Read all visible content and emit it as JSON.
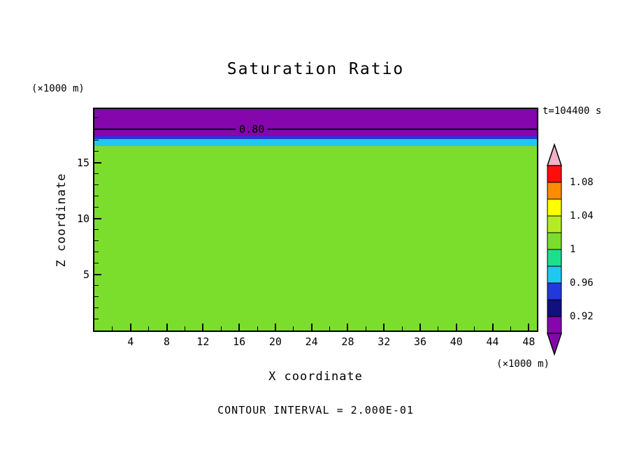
{
  "title": "Saturation Ratio",
  "timestamp": "t=104400 s",
  "footer": "CONTOUR INTERVAL = 2.000E-01",
  "x_axis": {
    "label": "X coordinate",
    "units": "(×1000 m)",
    "ticks": [
      4,
      8,
      12,
      16,
      20,
      24,
      28,
      32,
      36,
      40,
      44,
      48
    ]
  },
  "y_axis": {
    "label": "Z coordinate",
    "units": "(×1000 m)",
    "ticks": [
      5,
      10,
      15
    ]
  },
  "colorbar": {
    "arrow_top_color": "#F0B2C4",
    "arrow_bottom_color": "#8406AC",
    "segments": [
      {
        "color": "#FB0E0C"
      },
      {
        "color": "#FF8C00"
      },
      {
        "color": "#FFFF00"
      },
      {
        "color": "#B4EC24"
      },
      {
        "color": "#7CDE2C"
      },
      {
        "color": "#1CDE8C"
      },
      {
        "color": "#1EC8F0"
      },
      {
        "color": "#2238DC"
      },
      {
        "color": "#101080"
      },
      {
        "color": "#8406AC"
      }
    ],
    "labels": [
      "1.08",
      "1.04",
      "1",
      "0.96",
      "0.92"
    ]
  },
  "chart_data": {
    "type": "heatmap",
    "title": "Saturation Ratio",
    "xlabel": "X coordinate (×1000 m)",
    "ylabel": "Z coordinate (×1000 m)",
    "xlim": [
      0,
      48.9
    ],
    "ylim": [
      0,
      19.8
    ],
    "time_label": "t=104400 s",
    "contour_interval": "2.000E-01",
    "colorbar_values": [
      0.92,
      0.96,
      1.0,
      1.04,
      1.08
    ],
    "bands": [
      {
        "z_from": 0,
        "z_to": 16.5,
        "value": 1.0,
        "color": "#7CDE2C"
      },
      {
        "z_from": 16.5,
        "z_to": 17.1,
        "value": 0.96,
        "color": "#1EC8F0"
      },
      {
        "z_from": 17.1,
        "z_to": 17.35,
        "value": 0.93,
        "color": "#2238DC"
      },
      {
        "z_from": 17.35,
        "z_to": 19.8,
        "value": 0.85,
        "color": "#8406AC"
      }
    ],
    "contour": {
      "label": "0.80",
      "value": 0.8,
      "z": 18.0,
      "label_x": 17.4
    }
  }
}
